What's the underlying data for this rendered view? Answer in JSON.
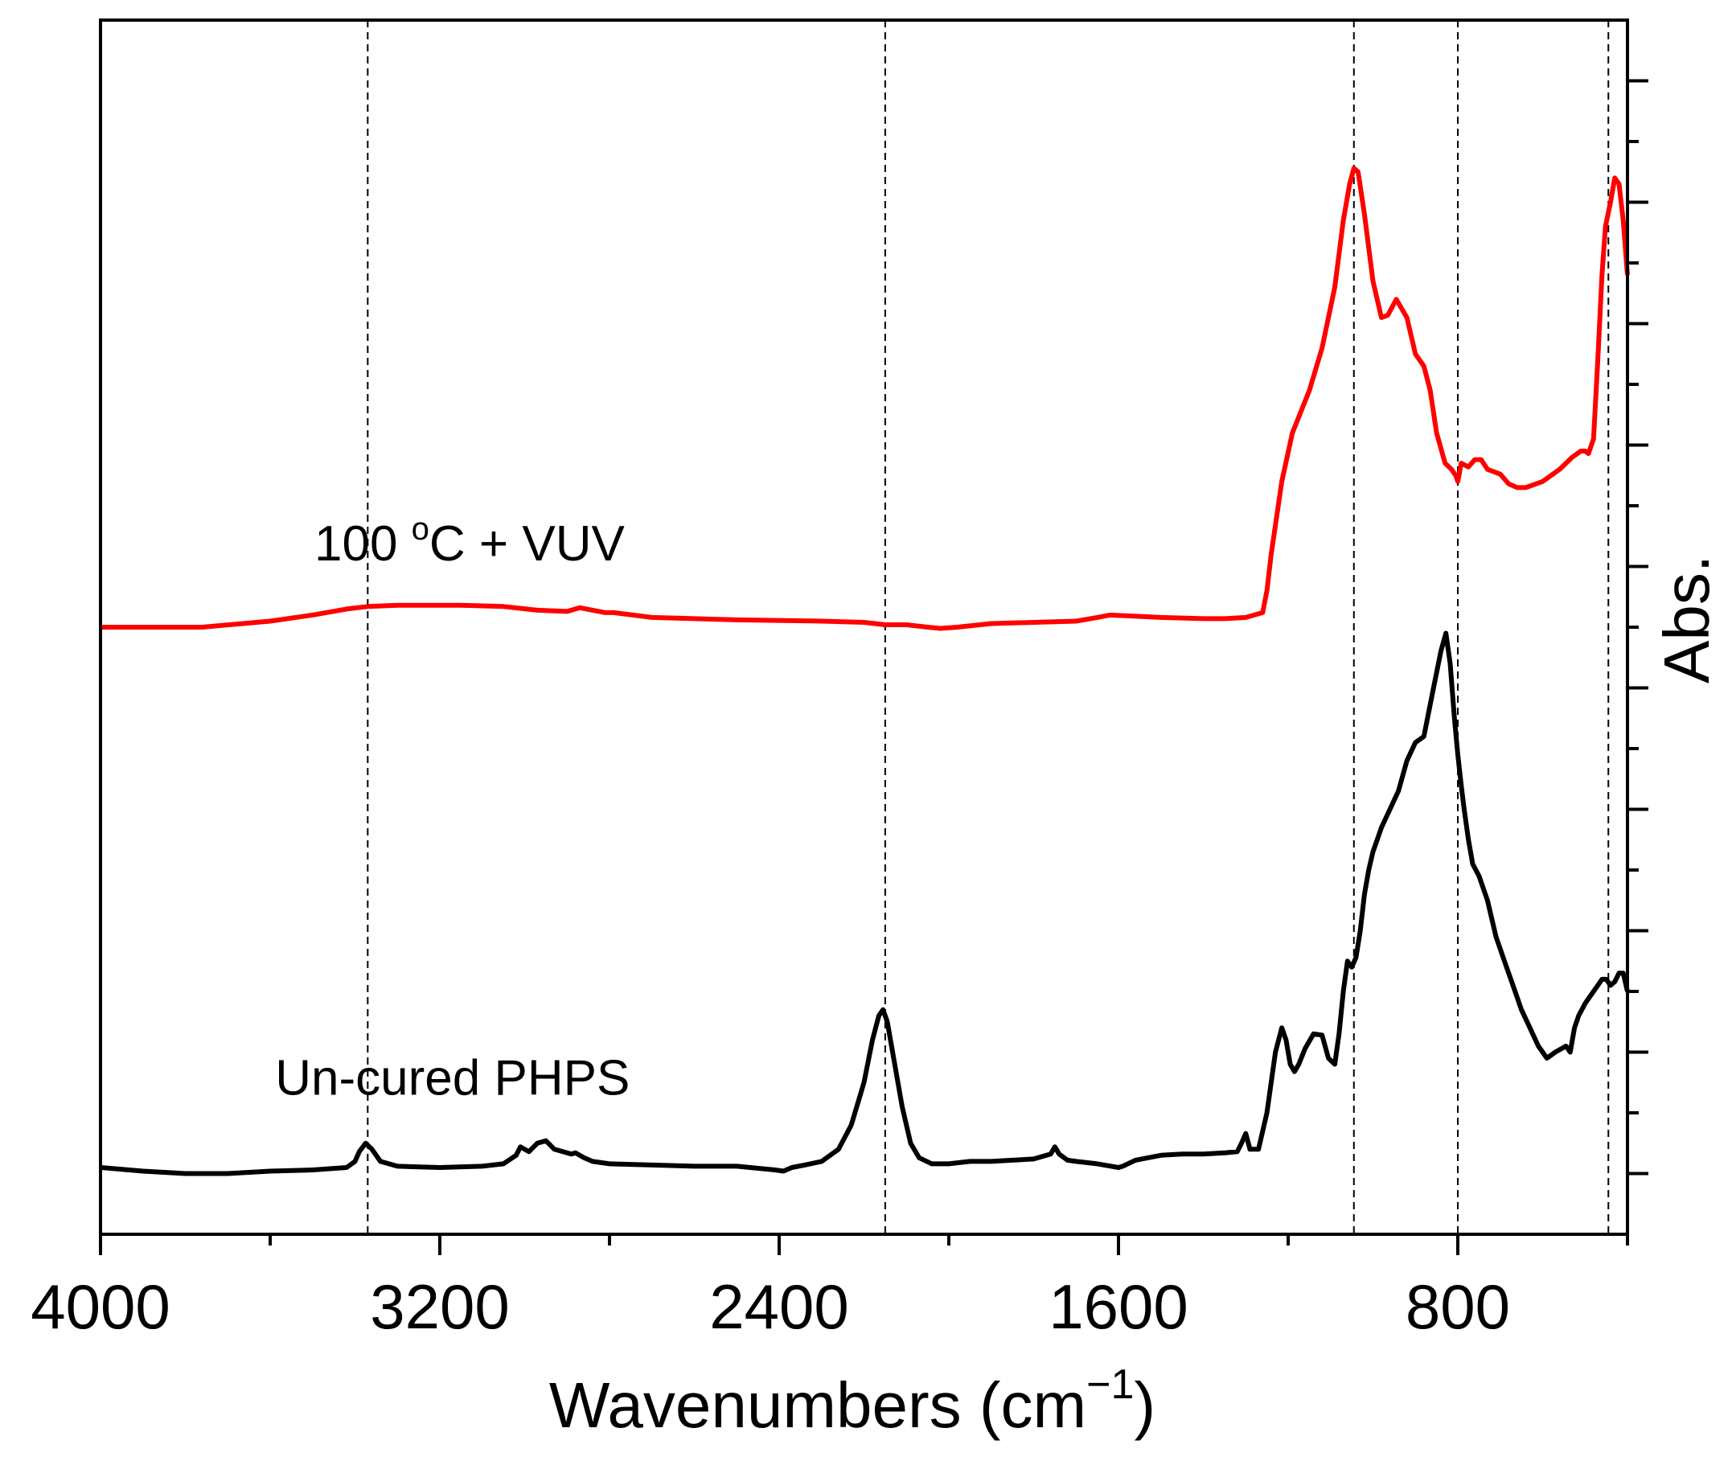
{
  "chart_data": {
    "type": "line",
    "title": "",
    "xlabel": "Wavenumbers (cm",
    "xlabel_sup": "−1",
    "xlabel_end": ")",
    "ylabel": "Abs.",
    "xlim": [
      4000,
      400
    ],
    "ylim": [
      0,
      100
    ],
    "x_ticks": [
      4000,
      3200,
      2400,
      1600,
      800
    ],
    "x_tick_labels": [
      "4000",
      "3200",
      "2400",
      "1600",
      "800"
    ],
    "x_minor_ticks": [
      3600,
      2800,
      2000,
      1200,
      400
    ],
    "y_ticks": [
      5,
      10,
      15,
      20,
      25,
      30,
      35,
      40,
      45,
      50,
      55,
      60,
      65,
      70,
      75,
      80,
      85,
      90,
      95
    ],
    "y_major_ticks": [
      5,
      15,
      25,
      35,
      45,
      55,
      65,
      75,
      85,
      95
    ],
    "reference_lines": [
      3370,
      2150,
      1045,
      800,
      445
    ],
    "reference_line_style": "dashed",
    "annotations": [
      {
        "text_main": "100 ",
        "text_sup": "o",
        "text_end": "C + VUV",
        "x": 3130,
        "y": 55.5
      },
      {
        "text_main": "Un-cured PHPS",
        "text": "Un-cured PHPS",
        "x": 3170,
        "y": 11.5
      }
    ],
    "series": [
      {
        "name": "100 oC + VUV",
        "color": "#ff0000",
        "x": [
          4000,
          3860,
          3760,
          3600,
          3500,
          3420,
          3370,
          3300,
          3150,
          3050,
          2970,
          2900,
          2870,
          2810,
          2790,
          2700,
          2500,
          2300,
          2200,
          2150,
          2100,
          2050,
          2020,
          1980,
          1900,
          1800,
          1700,
          1650,
          1620,
          1500,
          1400,
          1350,
          1300,
          1260,
          1250,
          1240,
          1215,
          1190,
          1150,
          1120,
          1090,
          1070,
          1055,
          1045,
          1035,
          1020,
          1000,
          980,
          965,
          945,
          920,
          900,
          880,
          865,
          850,
          830,
          815,
          805,
          800,
          792,
          775,
          760,
          745,
          730,
          700,
          680,
          660,
          640,
          600,
          560,
          530,
          510,
          500,
          492,
          480,
          470,
          460,
          452,
          440,
          430,
          420,
          410,
          400
        ],
        "y": [
          50.0,
          50.0,
          50.0,
          50.5,
          51.0,
          51.5,
          51.7,
          51.8,
          51.8,
          51.7,
          51.4,
          51.3,
          51.6,
          51.2,
          51.2,
          50.8,
          50.6,
          50.5,
          50.4,
          50.2,
          50.2,
          50.0,
          49.9,
          50.0,
          50.3,
          50.4,
          50.5,
          50.8,
          51.0,
          50.8,
          50.7,
          50.7,
          50.8,
          51.2,
          53.0,
          56.0,
          62.0,
          66.0,
          69.5,
          73.0,
          78.0,
          83.5,
          86.5,
          87.8,
          87.5,
          84.0,
          78.5,
          75.5,
          75.7,
          77.0,
          75.5,
          72.5,
          71.5,
          69.5,
          66.0,
          63.5,
          63.0,
          62.5,
          62.0,
          63.5,
          63.2,
          63.8,
          63.8,
          63.0,
          62.6,
          61.8,
          61.5,
          61.5,
          62.0,
          63.0,
          64.0,
          64.5,
          64.5,
          64.3,
          65.5,
          72.0,
          79.0,
          83.0,
          85.0,
          87.0,
          86.5,
          83.5,
          79.0
        ]
      },
      {
        "name": "Un-cured PHPS",
        "color": "#000000",
        "x": [
          4000,
          3900,
          3800,
          3750,
          3700,
          3600,
          3500,
          3420,
          3400,
          3390,
          3375,
          3360,
          3340,
          3300,
          3200,
          3100,
          3050,
          3020,
          3010,
          2990,
          2970,
          2950,
          2930,
          2910,
          2890,
          2880,
          2860,
          2840,
          2800,
          2700,
          2600,
          2500,
          2410,
          2390,
          2370,
          2340,
          2300,
          2260,
          2230,
          2200,
          2180,
          2165,
          2155,
          2145,
          2130,
          2110,
          2090,
          2070,
          2040,
          2000,
          1950,
          1900,
          1850,
          1800,
          1760,
          1750,
          1740,
          1720,
          1700,
          1650,
          1600,
          1590,
          1560,
          1500,
          1450,
          1400,
          1350,
          1320,
          1310,
          1300,
          1290,
          1270,
          1250,
          1230,
          1215,
          1205,
          1195,
          1185,
          1175,
          1160,
          1140,
          1120,
          1105,
          1090,
          1080,
          1070,
          1060,
          1050,
          1040,
          1030,
          1020,
          1010,
          1000,
          990,
          980,
          960,
          940,
          920,
          900,
          880,
          860,
          840,
          828,
          818,
          808,
          800,
          792,
          785,
          775,
          765,
          750,
          730,
          710,
          690,
          670,
          650,
          630,
          610,
          590,
          570,
          545,
          535,
          525,
          515,
          500,
          490,
          480,
          470,
          460,
          450,
          440,
          430,
          420,
          410,
          400
        ],
        "y": [
          5.5,
          5.2,
          5.0,
          5.0,
          5.0,
          5.2,
          5.3,
          5.5,
          6.0,
          6.8,
          7.5,
          7.0,
          6.0,
          5.6,
          5.5,
          5.6,
          5.8,
          6.5,
          7.2,
          6.8,
          7.5,
          7.7,
          7.0,
          6.8,
          6.6,
          6.7,
          6.3,
          6.0,
          5.8,
          5.7,
          5.6,
          5.6,
          5.3,
          5.2,
          5.5,
          5.7,
          6.0,
          7.0,
          9.0,
          12.5,
          16.0,
          18.0,
          18.5,
          17.5,
          14.5,
          10.5,
          7.5,
          6.3,
          5.8,
          5.8,
          6.0,
          6.0,
          6.1,
          6.2,
          6.6,
          7.2,
          6.6,
          6.1,
          6.0,
          5.8,
          5.5,
          5.6,
          6.1,
          6.5,
          6.6,
          6.6,
          6.7,
          6.8,
          7.5,
          8.3,
          7.0,
          7.0,
          10.0,
          15.0,
          17.0,
          16.0,
          14.0,
          13.4,
          14.0,
          15.3,
          16.5,
          16.4,
          14.5,
          14.0,
          16.5,
          20.0,
          22.5,
          22.0,
          22.8,
          25.0,
          28.0,
          30.0,
          31.5,
          32.5,
          33.5,
          35.0,
          36.5,
          39.0,
          40.5,
          41.0,
          44.5,
          48.0,
          49.5,
          47.0,
          42.5,
          39.5,
          37.0,
          35.0,
          32.5,
          30.5,
          29.5,
          27.5,
          24.5,
          22.5,
          20.5,
          18.5,
          17.0,
          15.5,
          14.5,
          15.0,
          15.5,
          15.0,
          17.0,
          18.0,
          19.0,
          19.5,
          20.0,
          20.5,
          21.0,
          21.0,
          20.5,
          20.8,
          21.5,
          21.5,
          20.0
        ]
      }
    ]
  }
}
